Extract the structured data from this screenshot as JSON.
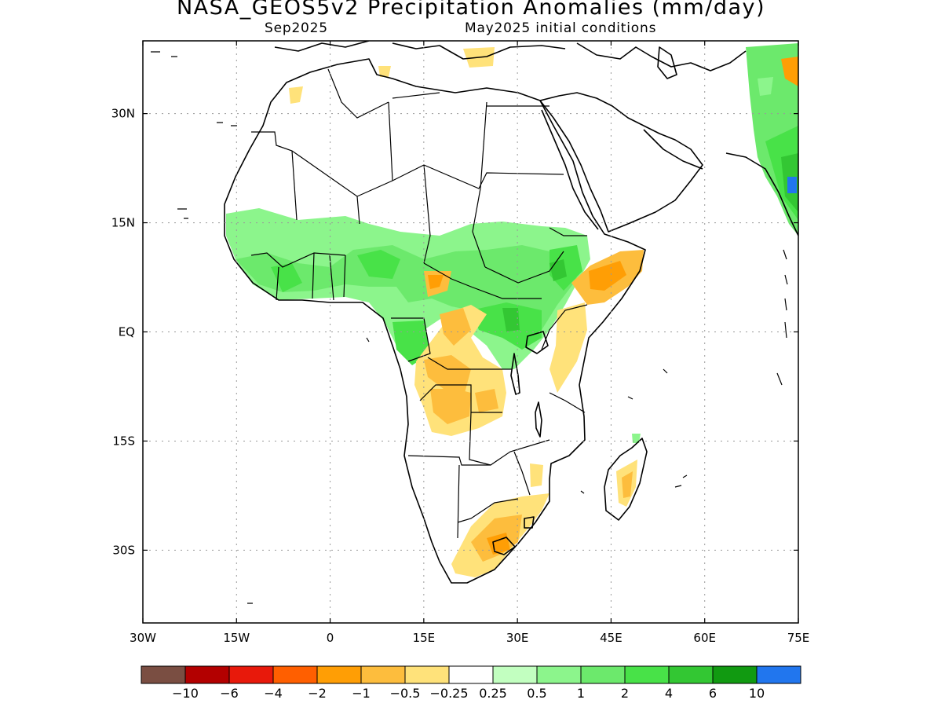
{
  "title": "NASA_GEOS5v2 Precipitation Anomalies (mm/day)",
  "subtitle_left": "Sep2025",
  "subtitle_right": "May2025 initial conditions",
  "map": {
    "lon_range": [
      -30,
      75
    ],
    "lat_range": [
      -40,
      40
    ],
    "lon_ticks": [
      "30W",
      "15W",
      "0",
      "15E",
      "30E",
      "45E",
      "60E",
      "75E"
    ],
    "lat_ticks": [
      "30N",
      "15N",
      "EQ",
      "15S",
      "30S"
    ],
    "grid": "dotted"
  },
  "colorbar": {
    "colors": [
      "#7a4e42",
      "#b30000",
      "#e8190b",
      "#ff5f00",
      "#ff9e05",
      "#fdbd3d",
      "#ffe27a",
      "#ffffff",
      "#c2ffc0",
      "#8cf58c",
      "#6ce96c",
      "#48e248",
      "#33c733",
      "#119a11",
      "#2176ee"
    ],
    "labels": [
      "-10",
      "-6",
      "-4",
      "-2",
      "-1",
      "-0.5",
      "-0.25",
      "0.25",
      "0.5",
      "1",
      "2",
      "4",
      "6",
      "10"
    ]
  }
}
